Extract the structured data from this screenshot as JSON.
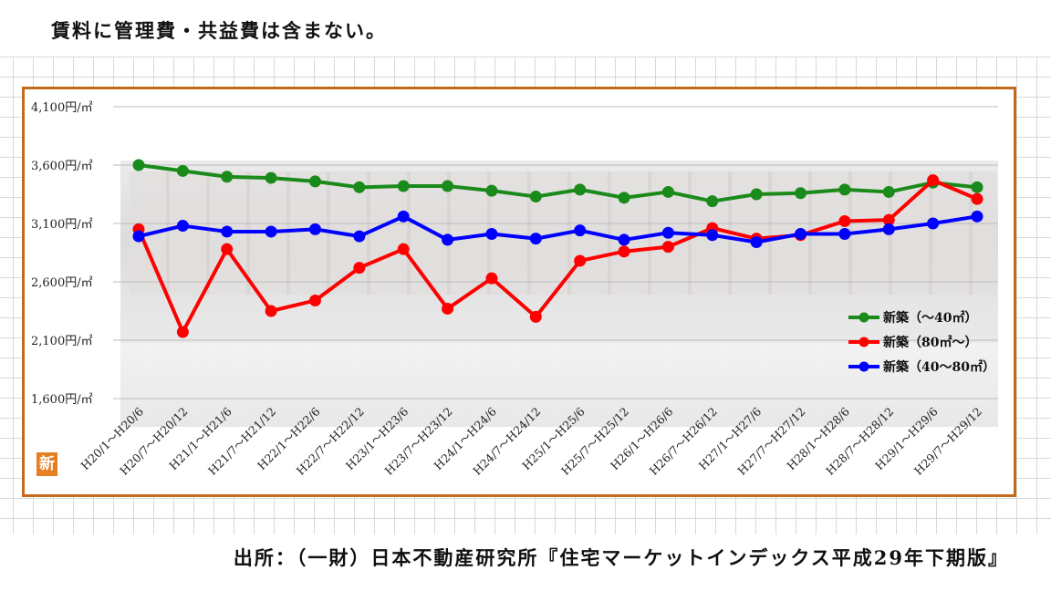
{
  "header": {
    "note": "賃料に管理費・共益費は含まない。"
  },
  "footer": {
    "source": "出所：（一財）日本不動産研究所『住宅マーケットインデックス平成29年下期版』"
  },
  "badge": {
    "label": "新"
  },
  "chart_data": {
    "type": "line",
    "y_ticks": [
      "4,100円/㎡",
      "3,600円/㎡",
      "3,100円/㎡",
      "2,600円/㎡",
      "2,100円/㎡",
      "1,600円/㎡"
    ],
    "ylim": [
      1600,
      4100
    ],
    "grid": true,
    "legend_position": "right",
    "categories": [
      "H20/1～H20/6",
      "H20/7～H20/12",
      "H21/1～H21/6",
      "H21/7～H21/12",
      "H22/1～H22/6",
      "H22/7～H22/12",
      "H23/1～H23/6",
      "H23/7～H23/12",
      "H24/1～H24/6",
      "H24/7～H24/12",
      "H25/1～H25/6",
      "H25/7～H25/12",
      "H26/1～H26/6",
      "H26/7～H26/12",
      "H27/1～H27/6",
      "H27/7～H27/12",
      "H28/1～H28/6",
      "H28/7～H28/12",
      "H29/1～H29/6",
      "H29/7～H29/12"
    ],
    "series": [
      {
        "name": "新築（～40㎡）",
        "color": "#1a8a1a",
        "values": [
          3600,
          3550,
          3500,
          3490,
          3460,
          3410,
          3420,
          3420,
          3380,
          3330,
          3390,
          3320,
          3370,
          3290,
          3350,
          3360,
          3390,
          3370,
          3450,
          3410
        ]
      },
      {
        "name": "新築（80㎡～）",
        "color": "#ff0000",
        "values": [
          3050,
          2170,
          2880,
          2350,
          2440,
          2720,
          2880,
          2370,
          2630,
          2300,
          2780,
          2860,
          2900,
          3060,
          2970,
          3000,
          3120,
          3130,
          3470,
          3310
        ]
      },
      {
        "name": "新築（40～80㎡）",
        "color": "#0000ff",
        "values": [
          2990,
          3080,
          3030,
          3030,
          3050,
          2990,
          3160,
          2960,
          3010,
          2970,
          3040,
          2960,
          3020,
          3000,
          2940,
          3010,
          3010,
          3050,
          3100,
          3160
        ]
      }
    ]
  }
}
